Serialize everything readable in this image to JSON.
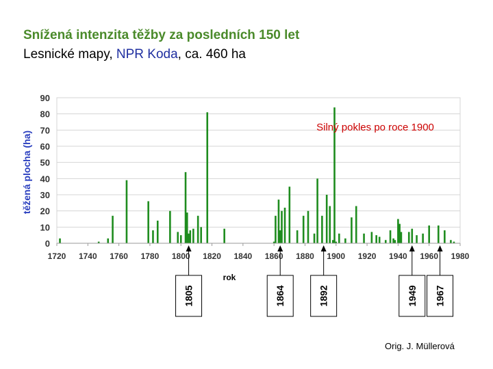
{
  "header": {
    "title": "Snížená intenzita těžby za posledních 150 let",
    "subtitle_prefix": "Lesnické mapy, ",
    "subtitle_location": "NPR Koda",
    "subtitle_suffix": ", ca. 460 ha"
  },
  "credit": "Orig. J. Müllerová",
  "colors": {
    "title": "#4a8a2a",
    "bars": "#1e8c1e",
    "ylabel": "#2a3fbf",
    "annotation": "#cc0000",
    "grid": "#d4d4d4"
  },
  "chart_data": {
    "type": "bar",
    "title": "",
    "xlabel": "rok",
    "ylabel": "těžená plocha (ha)",
    "xlim": [
      1720,
      1980
    ],
    "ylim": [
      0,
      90
    ],
    "x_ticks": [
      "1720",
      "1740",
      "1760",
      "1780",
      "1800",
      "1820",
      "1840",
      "1860",
      "1880",
      "1900",
      "1920",
      "1940",
      "1960",
      "1980"
    ],
    "y_ticks": [
      "0",
      "10",
      "20",
      "30",
      "40",
      "50",
      "60",
      "70",
      "80",
      "90"
    ],
    "grid": true,
    "annotation": "Silný pokles po roce 1900",
    "markers": [
      "1805",
      "1864",
      "1892",
      "1949",
      "1967"
    ],
    "series": [
      {
        "x": [
          1722,
          1747,
          1753,
          1756,
          1765,
          1779,
          1782,
          1785,
          1793,
          1798,
          1800,
          1803,
          1804,
          1805,
          1806,
          1808,
          1811,
          1813,
          1817,
          1828,
          1860,
          1861,
          1863,
          1864,
          1865,
          1867,
          1870,
          1875,
          1879,
          1882,
          1886,
          1888,
          1891,
          1894,
          1896,
          1898,
          1899,
          1900,
          1902,
          1906,
          1910,
          1913,
          1918,
          1923,
          1926,
          1928,
          1932,
          1935,
          1937,
          1938,
          1940,
          1941,
          1942,
          1947,
          1949,
          1952,
          1956,
          1960,
          1966,
          1970,
          1974,
          1976
        ],
        "y": [
          3,
          1,
          3,
          17,
          39,
          26,
          8,
          14,
          20,
          7,
          5,
          44,
          19,
          6,
          8,
          9,
          17,
          10,
          81,
          9,
          1,
          17,
          27,
          8,
          20,
          22,
          35,
          8,
          17,
          20,
          6,
          40,
          17,
          30,
          23,
          2,
          84,
          1,
          6,
          3,
          16,
          23,
          6,
          7,
          5,
          4,
          2,
          8,
          3,
          2,
          15,
          12,
          7,
          7,
          9,
          5,
          6,
          11,
          11,
          8,
          2,
          1
        ]
      }
    ]
  }
}
